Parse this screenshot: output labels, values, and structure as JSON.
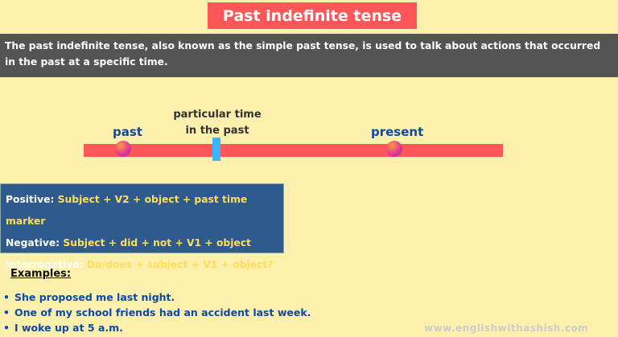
{
  "title": "Past indefinite tense",
  "description": "The past indefinite tense, also known as the simple past tense, is used to talk about actions that occurred in the past at a specific time.",
  "timeline": {
    "past": "past",
    "particular_time_line1": "particular time",
    "particular_time_line2": "in the past",
    "present": "present"
  },
  "formulas": [
    {
      "label": "Positive:",
      "formula": "Subject +  V2 + object + past time marker"
    },
    {
      "label": "Negative:",
      "formula": "Subject +  did + not + V1 + object"
    },
    {
      "label": "Interrogative:",
      "formula": "Do/does + subject + V1 + object?"
    }
  ],
  "examples_heading": "Examples:",
  "examples": [
    "She proposed me last night.",
    "One of my school friends had an accident last week.",
    "I woke up at 5 a.m."
  ],
  "website": "www.englishwithashish.com",
  "colors": {
    "background": "#fff0ad",
    "title_bg": "#ff5757",
    "band": "#545454",
    "formula_bg": "#2e5a8e",
    "formula_text": "#ffde59",
    "blue_text": "#0a4aa8",
    "marker": "#38b6ff"
  }
}
